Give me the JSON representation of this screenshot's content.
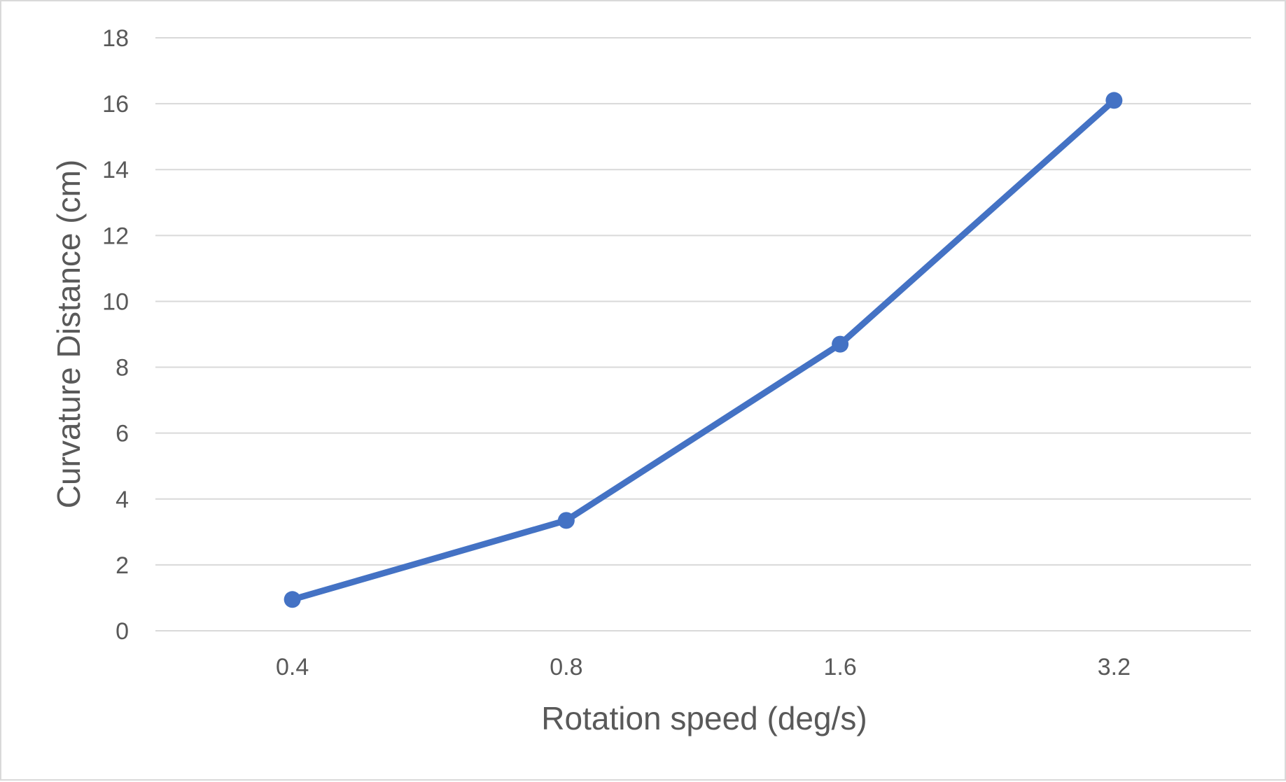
{
  "chart_data": {
    "type": "line",
    "title": "",
    "xlabel": "Rotation speed (deg/s)",
    "ylabel": "Curvature Distance (cm)",
    "categories": [
      "0.4",
      "0.8",
      "1.6",
      "3.2"
    ],
    "series": [
      {
        "values": [
          0.95,
          3.35,
          8.7,
          16.1
        ],
        "color": "#4472c4"
      }
    ],
    "ylim": [
      0,
      18
    ],
    "y_ticks": [
      "0",
      "2",
      "4",
      "6",
      "8",
      "10",
      "12",
      "14",
      "16",
      "18"
    ],
    "grid": "horizontal",
    "legend": "none",
    "marker": "circle"
  }
}
